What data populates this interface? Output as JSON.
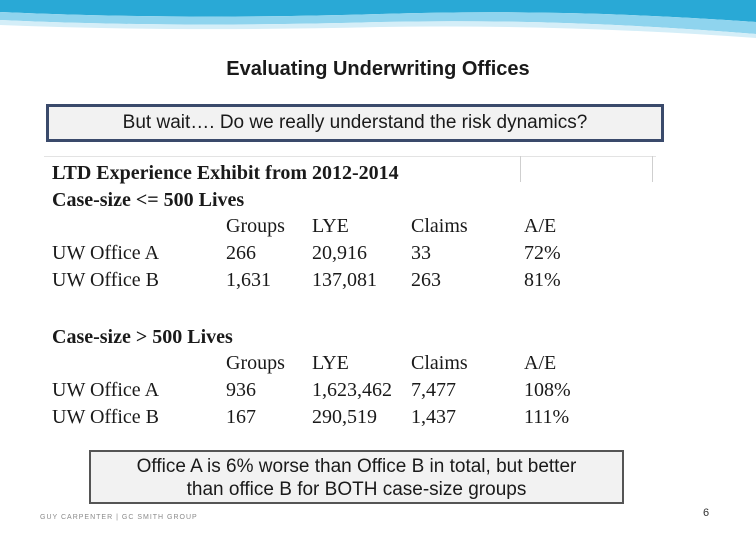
{
  "slide": {
    "title": "Evaluating Underwriting Offices",
    "callout_top": "But wait…. Do we really understand the risk dynamics?",
    "exhibit": {
      "title": "LTD Experience Exhibit from 2012-2014",
      "columns": [
        "Groups",
        "LYE",
        "Claims",
        "A/E"
      ],
      "sections": [
        {
          "heading": "Case-size <= 500 Lives",
          "rows": [
            {
              "office": "UW Office A",
              "groups": "266",
              "lye": "20,916",
              "claims": "33",
              "ae": "72%"
            },
            {
              "office": "UW Office B",
              "groups": "1,631",
              "lye": "137,081",
              "claims": "263",
              "ae": "81%"
            }
          ]
        },
        {
          "heading": "Case-size > 500 Lives",
          "rows": [
            {
              "office": "UW Office A",
              "groups": "936",
              "lye": "1,623,462",
              "claims": "7,477",
              "ae": "108%"
            },
            {
              "office": "UW Office B",
              "groups": "167",
              "lye": "290,519",
              "claims": "1,437",
              "ae": "111%"
            }
          ]
        }
      ]
    },
    "callout_bottom_line1": "Office A is 6% worse than Office B in total, but better",
    "callout_bottom_line2": "than office B for BOTH case-size groups",
    "footer_brand": "GUY CARPENTER | GC SMITH GROUP",
    "page_number": "6"
  },
  "colors": {
    "band_dark": "#29a9d6",
    "band_light": "#8fd4ee",
    "callout_border": "#3a4a6b",
    "callout_fill": "#f2f2f2"
  }
}
